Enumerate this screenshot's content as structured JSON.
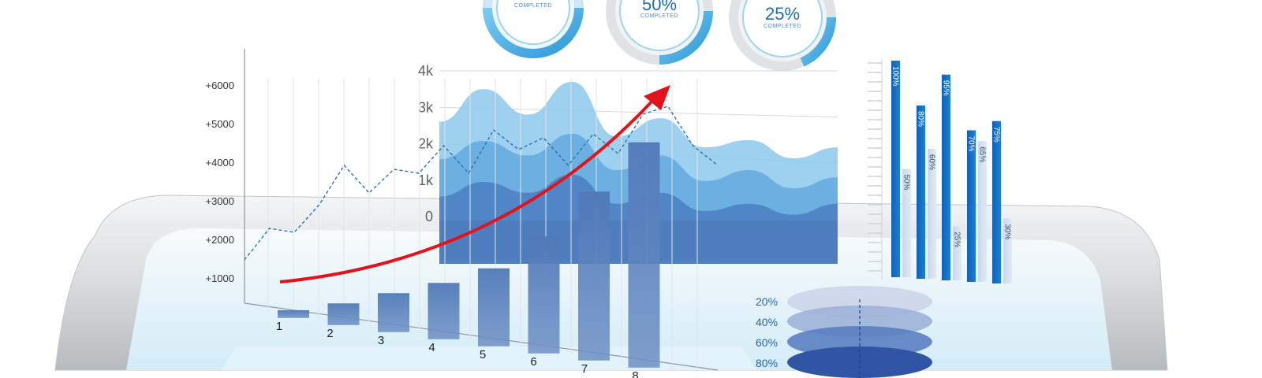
{
  "gauges": [
    {
      "value": "",
      "caption": "COMPLETED"
    },
    {
      "value": "50%",
      "caption": "COMPLETED"
    },
    {
      "value": "25%",
      "caption": "COMPLETED"
    }
  ],
  "bar_axis": {
    "y_ticks": [
      "+6000",
      "+5000",
      "+4000",
      "+3000",
      "+2000",
      "+1000"
    ],
    "x_ticks": [
      "1",
      "2",
      "3",
      "4",
      "5",
      "6",
      "7",
      "8"
    ]
  },
  "area_axis": {
    "y_ticks": [
      "4k",
      "3k",
      "2k",
      "1k",
      "0"
    ]
  },
  "vertical_bars": {
    "labels": [
      "100%",
      "50%",
      "80%",
      "60%",
      "95%",
      "25%",
      "70%",
      "65%",
      "75%",
      "30%"
    ]
  },
  "stack": {
    "labels": [
      "20%",
      "40%",
      "60%",
      "80%"
    ]
  },
  "chart_data": [
    {
      "type": "bar",
      "categories": [
        "1",
        "2",
        "3",
        "4",
        "5",
        "6",
        "7",
        "8"
      ],
      "values": [
        180,
        500,
        900,
        1300,
        1800,
        2700,
        3900,
        5200
      ],
      "ylim": [
        0,
        6000
      ]
    },
    {
      "type": "line",
      "values": [
        800,
        1600,
        1500,
        2200,
        3200,
        2500,
        3100,
        3000,
        3700,
        3000,
        4100,
        3600,
        3900,
        3200,
        4000,
        3500,
        4500,
        4700,
        3700,
        3200
      ]
    },
    {
      "type": "area",
      "series": [
        {
          "values": [
            2.6,
            3.5,
            2.8,
            3.7,
            2.2,
            2.7,
            1.9,
            2.1,
            1.6,
            1.9
          ]
        },
        {
          "values": [
            1.9,
            2.4,
            2.0,
            2.6,
            1.6,
            2.0,
            1.3,
            1.6,
            1.1,
            1.4
          ]
        },
        {
          "values": [
            1.2,
            1.6,
            1.3,
            1.8,
            1.0,
            1.3,
            0.8,
            1.0,
            0.7,
            1.0
          ]
        }
      ],
      "ylim": [
        0,
        4
      ],
      "grid": true
    },
    {
      "type": "bar",
      "categories": [
        "100%",
        "50%",
        "80%",
        "60%",
        "95%",
        "25%",
        "70%",
        "65%",
        "75%",
        "30%"
      ],
      "values": [
        100,
        50,
        80,
        60,
        95,
        25,
        70,
        65,
        75,
        30
      ]
    }
  ]
}
